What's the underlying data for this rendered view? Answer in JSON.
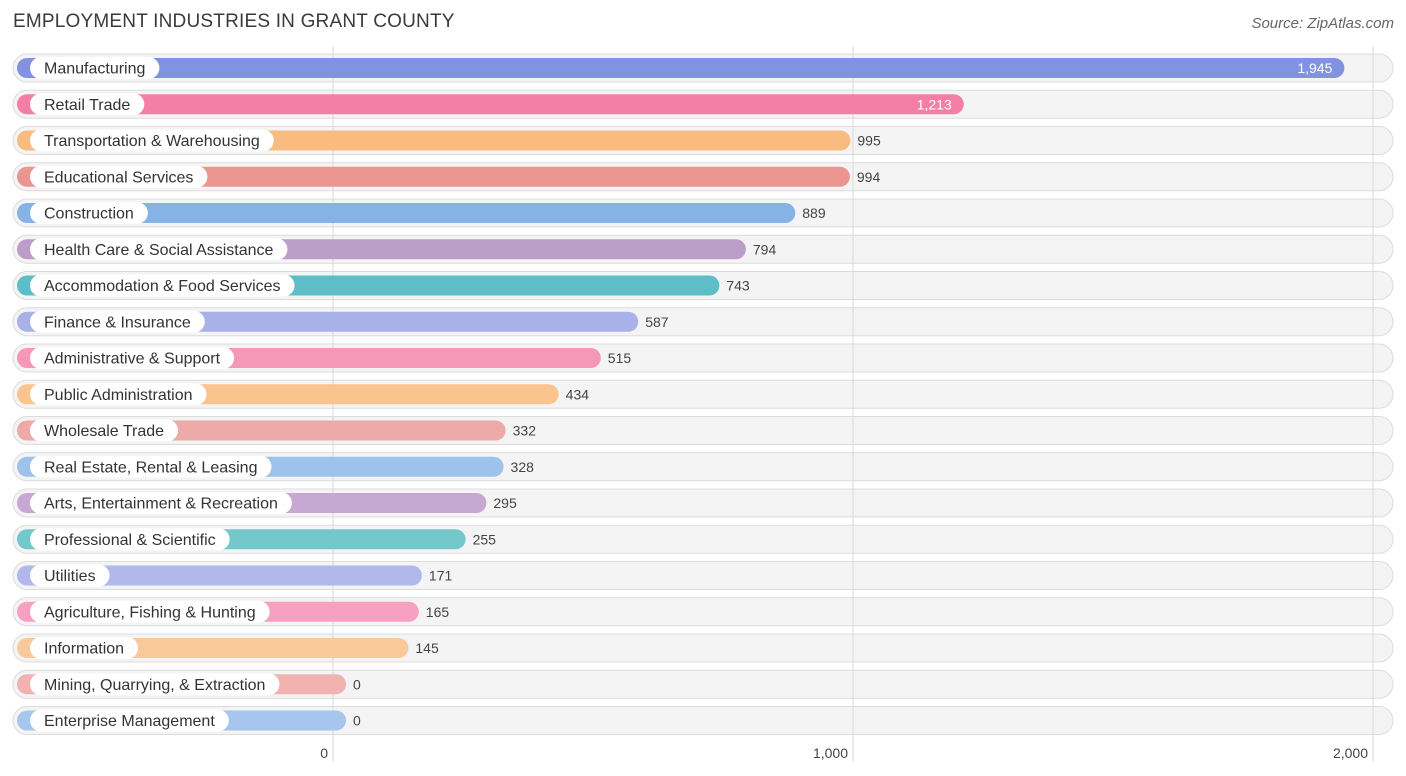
{
  "header": {
    "title": "EMPLOYMENT INDUSTRIES IN GRANT COUNTY",
    "source": "Source: ZipAtlas.com"
  },
  "chart_data": {
    "type": "bar",
    "orientation": "horizontal",
    "title": "EMPLOYMENT INDUSTRIES IN GRANT COUNTY",
    "xlabel": "",
    "ylabel": "",
    "xlim": [
      0,
      2000
    ],
    "x_ticks": [
      0,
      1000,
      2000
    ],
    "x_tick_labels": [
      "0",
      "1,000",
      "2,000"
    ],
    "grid": true,
    "categories": [
      "Manufacturing",
      "Retail Trade",
      "Transportation & Warehousing",
      "Educational Services",
      "Construction",
      "Health Care & Social Assistance",
      "Accommodation & Food Services",
      "Finance & Insurance",
      "Administrative & Support",
      "Public Administration",
      "Wholesale Trade",
      "Real Estate, Rental & Leasing",
      "Arts, Entertainment & Recreation",
      "Professional & Scientific",
      "Utilities",
      "Agriculture, Fishing & Hunting",
      "Information",
      "Mining, Quarrying, & Extraction",
      "Enterprise Management"
    ],
    "values": [
      1945,
      1213,
      995,
      994,
      889,
      794,
      743,
      587,
      515,
      434,
      332,
      328,
      295,
      255,
      171,
      165,
      145,
      0,
      0
    ],
    "value_labels": [
      "1,945",
      "1,213",
      "995",
      "994",
      "889",
      "794",
      "743",
      "587",
      "515",
      "434",
      "332",
      "328",
      "295",
      "255",
      "171",
      "165",
      "145",
      "0",
      "0"
    ],
    "colors": [
      "#8193e0",
      "#f47fa6",
      "#f9bb7f",
      "#eb9590",
      "#86b2e6",
      "#bc9cc9",
      "#5ebec7",
      "#a8b1e8",
      "#f598b8",
      "#f9c48e",
      "#eeaaa8",
      "#9ec2ec",
      "#c7a8d2",
      "#74c8cb",
      "#b2b7ec",
      "#f7a0bf",
      "#f9c99a",
      "#f0b3b0",
      "#a6c6ee"
    ]
  }
}
